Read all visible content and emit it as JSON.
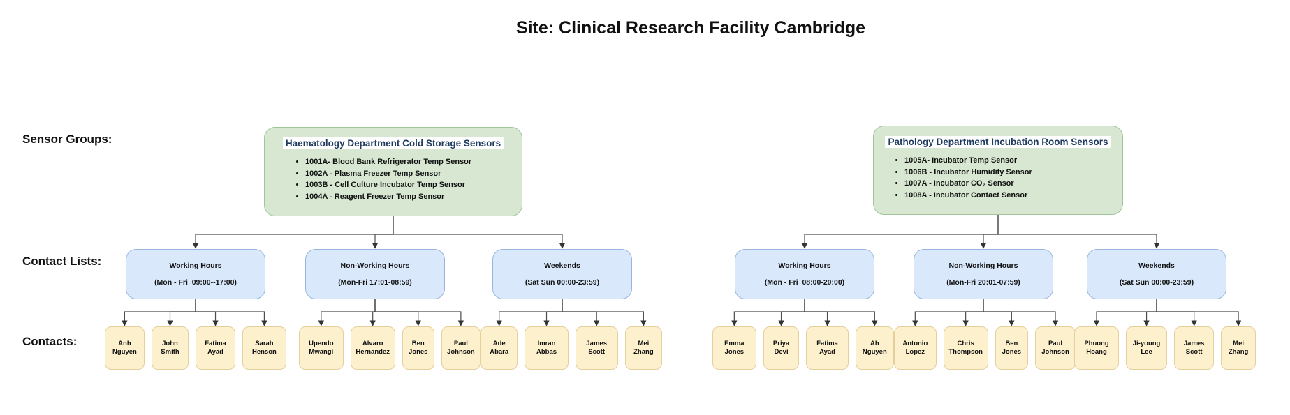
{
  "title": "Site: Clinical Research Facility Cambridge",
  "row_labels": {
    "sensor_groups": "Sensor Groups:",
    "contact_lists": "Contact Lists:",
    "contacts": "Contacts:"
  },
  "colors": {
    "sensor_group_fill": "#d7e7d1",
    "sensor_group_border": "#9fc599",
    "sensor_group_title_text": "#1e3a5f",
    "contact_list_fill": "#d9e8fb",
    "contact_list_border": "#97b5de",
    "contact_fill": "#fcf0cd",
    "contact_border": "#e5cf9c",
    "connector": "#4d4d4d"
  },
  "subtrees": [
    {
      "group": {
        "title": "Haematology Department Cold Storage Sensors",
        "sensors": [
          "1001A- Blood Bank Refrigerator Temp Sensor",
          "1002A - Plasma Freezer Temp Sensor",
          "1003B - Cell Culture Incubator Temp Sensor",
          "1004A - Reagent Freezer Temp Sensor"
        ]
      },
      "lists": [
        {
          "name": "Working Hours",
          "schedule": "(Mon - Fri  09:00--17:00)",
          "contacts": [
            "Anh Nguyen",
            "John Smith",
            "Fatima Ayad",
            "Sarah Henson"
          ]
        },
        {
          "name": "Non-Working Hours",
          "schedule": "(Mon-Fri 17:01-08:59)",
          "contacts": [
            "Upendo Mwangi",
            "Alvaro Hernandez",
            "Ben Jones",
            "Paul Johnson"
          ]
        },
        {
          "name": "Weekends",
          "schedule": "(Sat Sun 00:00-23:59)",
          "contacts": [
            "Ade Abara",
            "Imran Abbas",
            "James Scott",
            "Mei Zhang"
          ]
        }
      ]
    },
    {
      "group": {
        "title": "Pathology Department Incubation Room Sensors",
        "sensors": [
          "1005A- Incubator Temp Sensor",
          "1006B - Incubator Humidity Sensor",
          "1007A - Incubator CO₂ Sensor",
          "1008A - Incubator Contact Sensor"
        ]
      },
      "lists": [
        {
          "name": "Working Hours",
          "schedule": "(Mon - Fri  08:00-20:00)",
          "contacts": [
            "Emma Jones",
            "Priya Devi",
            "Fatima Ayad",
            "Ah Nguyen"
          ]
        },
        {
          "name": "Non-Working Hours",
          "schedule": "(Mon-Fri 20:01-07:59)",
          "contacts": [
            "Antonio Lopez",
            "Chris Thompson",
            "Ben Jones",
            "Paul Johnson"
          ]
        },
        {
          "name": "Weekends",
          "schedule": "(Sat Sun 00:00-23:59)",
          "contacts": [
            "Phuong Hoang",
            "Ji-young Lee",
            "James Scott",
            "Mei Zhang"
          ]
        }
      ]
    }
  ]
}
